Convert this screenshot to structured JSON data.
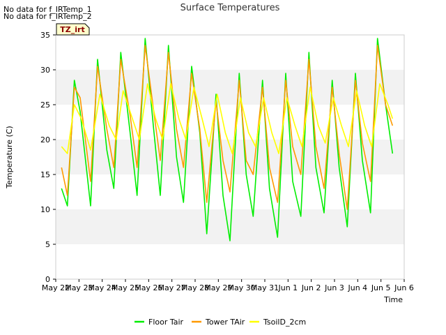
{
  "notes": [
    "No data for f_IRTemp_1",
    "No data for f_IRTemp_2"
  ],
  "badge": "TZ_irt",
  "chart_data": {
    "type": "line",
    "title": "Surface Temperatures",
    "xlabel": "Time",
    "ylabel": "Temperature (C)",
    "ylim": [
      0,
      35
    ],
    "yticks": [
      0,
      5,
      10,
      15,
      20,
      25,
      30,
      35
    ],
    "xlim": [
      0,
      15
    ],
    "xticks": [
      0,
      1,
      2,
      3,
      4,
      5,
      6,
      7,
      8,
      9,
      10,
      11,
      12,
      13,
      14,
      15
    ],
    "xtick_labels": [
      "May 22",
      "May 23",
      "May 24",
      "May 25",
      "May 26",
      "May 27",
      "May 28",
      "May 29",
      "May 30",
      "May 31",
      "Jun 1",
      "Jun 2",
      "Jun 3",
      "Jun 4",
      "Jun 5",
      "Jun 6"
    ],
    "grid": "horizontal bands",
    "series": [
      {
        "name": "Floor Tair",
        "color": "#00ee00",
        "x": [
          0.25,
          0.5,
          0.8,
          1.05,
          1.5,
          1.8,
          2.2,
          2.5,
          2.8,
          3.2,
          3.5,
          3.85,
          4.2,
          4.5,
          4.85,
          5.2,
          5.5,
          5.85,
          6.2,
          6.5,
          6.9,
          7.2,
          7.5,
          7.9,
          8.2,
          8.5,
          8.9,
          9.2,
          9.55,
          9.9,
          10.2,
          10.55,
          10.9,
          11.2,
          11.55,
          11.9,
          12.2,
          12.55,
          12.9,
          13.2,
          13.55,
          13.85,
          14.2,
          14.5
        ],
        "y": [
          13,
          10.5,
          28.5,
          24,
          10.5,
          31.5,
          18.5,
          13,
          32.5,
          21,
          12,
          34.5,
          22,
          12,
          33.5,
          17.5,
          11,
          30.5,
          21,
          6.5,
          26.5,
          12,
          5.5,
          29.5,
          15,
          9,
          28.5,
          13,
          6,
          29.5,
          14,
          9,
          32.5,
          16,
          9.5,
          28.5,
          16,
          7.5,
          29.5,
          17,
          9.5,
          34.5,
          25,
          18
        ]
      },
      {
        "name": "Tower TAir",
        "color": "#ff9900",
        "x": [
          0.25,
          0.5,
          0.8,
          1.05,
          1.5,
          1.8,
          2.2,
          2.5,
          2.8,
          3.2,
          3.5,
          3.85,
          4.2,
          4.5,
          4.85,
          5.2,
          5.5,
          5.85,
          6.2,
          6.5,
          6.9,
          7.2,
          7.5,
          7.9,
          8.2,
          8.5,
          8.9,
          9.2,
          9.55,
          9.9,
          10.2,
          10.55,
          10.9,
          11.2,
          11.55,
          11.9,
          12.2,
          12.55,
          12.9,
          13.2,
          13.55,
          13.85,
          14.2,
          14.5
        ],
        "y": [
          16,
          12,
          27.5,
          26,
          14,
          30.5,
          21.5,
          16,
          31.5,
          23.5,
          16,
          33.5,
          24.5,
          17,
          32.5,
          21.5,
          16,
          29.5,
          21.5,
          11,
          25.5,
          17,
          12.5,
          28.5,
          17,
          15,
          27.5,
          16,
          11,
          28.5,
          19,
          15,
          31.5,
          19,
          13,
          27.5,
          18,
          10,
          28.5,
          19.5,
          14,
          33.5,
          25,
          22
        ]
      },
      {
        "name": "TsoilD_2cm",
        "color": "#ffff00",
        "x": [
          0.25,
          0.5,
          0.8,
          1.1,
          1.5,
          1.9,
          2.3,
          2.6,
          2.9,
          3.3,
          3.6,
          3.95,
          4.3,
          4.6,
          4.95,
          5.3,
          5.6,
          5.95,
          6.3,
          6.6,
          6.95,
          7.3,
          7.6,
          7.95,
          8.3,
          8.6,
          8.95,
          9.3,
          9.6,
          9.95,
          10.3,
          10.6,
          10.95,
          11.3,
          11.6,
          11.95,
          12.3,
          12.6,
          12.95,
          13.3,
          13.6,
          13.95,
          14.3,
          14.5
        ],
        "y": [
          19,
          18,
          25,
          23,
          18.5,
          26.5,
          22,
          20,
          27,
          23,
          20,
          28,
          23,
          20,
          28,
          23,
          20,
          27.5,
          23,
          19,
          26.5,
          21,
          18,
          26,
          21,
          19,
          26,
          21,
          18,
          26,
          22,
          19,
          27.5,
          22,
          19.5,
          26,
          22,
          19,
          27,
          22,
          19,
          28,
          25,
          23
        ]
      }
    ],
    "legend": {
      "placement": "bottom-center"
    }
  }
}
